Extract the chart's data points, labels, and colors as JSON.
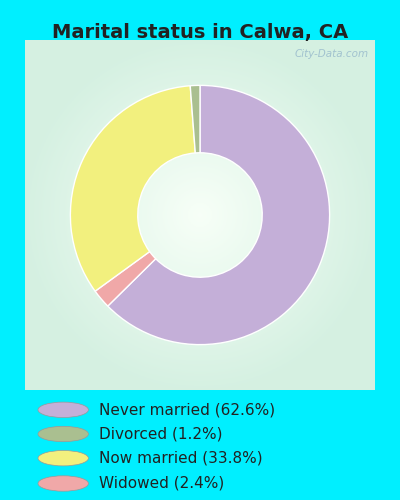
{
  "title": "Marital status in Calwa, CA",
  "slices": [
    {
      "label": "Never married (62.6%)",
      "value": 62.6,
      "color": "#c4afd8"
    },
    {
      "label": "Divorced (1.2%)",
      "value": 1.2,
      "color": "#aabf90"
    },
    {
      "label": "Now married (33.8%)",
      "value": 33.8,
      "color": "#f2f07e"
    },
    {
      "label": "Widowed (2.4%)",
      "value": 2.4,
      "color": "#f0a8a8"
    }
  ],
  "bg_color": "#00efff",
  "title_color": "#222222",
  "title_fontsize": 14,
  "legend_fontsize": 11,
  "watermark": "City-Data.com",
  "donut_width": 0.52,
  "startangle": 90
}
